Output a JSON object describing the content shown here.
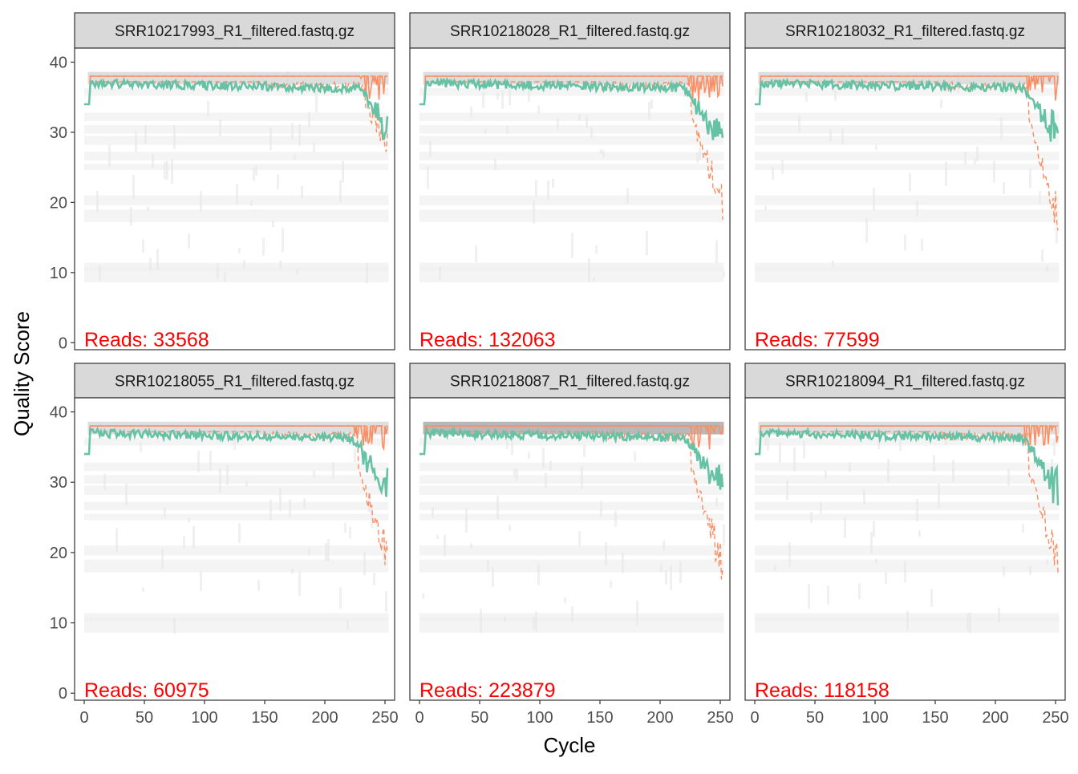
{
  "chart_data": {
    "type": "line",
    "layout": "facet-grid-2x3",
    "xlabel": "Cycle",
    "ylabel": "Quality Score",
    "xlim": [
      -8,
      258
    ],
    "ylim": [
      -1,
      42
    ],
    "xticks": [
      0,
      50,
      100,
      150,
      200,
      250
    ],
    "yticks": [
      0,
      10,
      20,
      30,
      40
    ],
    "grid": false,
    "colors": {
      "mean": "#66C2A5",
      "median": "#FC8D62",
      "quartiles": "#FC8D62",
      "annotation": "#FF0000",
      "heatmap": "#F0F0F0",
      "strip": "#D9D9D9"
    },
    "reads_prefix": "Reads:  ",
    "panels": [
      {
        "title": "SRR10217993_R1_filtered.fastq.gz",
        "reads": "33568",
        "end_mean": 34.2,
        "end_min_mean": 33.4,
        "end_q25": 32.5,
        "drop_start": 228
      },
      {
        "title": "SRR10218028_R1_filtered.fastq.gz",
        "reads": "132063",
        "end_mean": 32.0,
        "end_min_mean": 28.0,
        "end_q25": 22.5,
        "drop_start": 220
      },
      {
        "title": "SRR10218032_R1_filtered.fastq.gz",
        "reads": "77599",
        "end_mean": 33.0,
        "end_min_mean": 29.5,
        "end_q25": 21.0,
        "drop_start": 222
      },
      {
        "title": "SRR10218055_R1_filtered.fastq.gz",
        "reads": "60975",
        "end_mean": 32.5,
        "end_min_mean": 28.5,
        "end_q25": 22.5,
        "drop_start": 222
      },
      {
        "title": "SRR10218087_R1_filtered.fastq.gz",
        "reads": "223879",
        "end_mean": 32.5,
        "end_min_mean": 28.0,
        "end_q25": 21.0,
        "drop_start": 220
      },
      {
        "title": "SRR10218094_R1_filtered.fastq.gz",
        "reads": "118158",
        "end_mean": 33.0,
        "end_min_mean": 29.5,
        "end_q25": 21.0,
        "drop_start": 222
      }
    ],
    "series": [
      {
        "id": "mean",
        "style": "solid"
      },
      {
        "id": "median",
        "style": "solid"
      },
      {
        "id": "quartiles",
        "style": "dashed"
      }
    ]
  }
}
